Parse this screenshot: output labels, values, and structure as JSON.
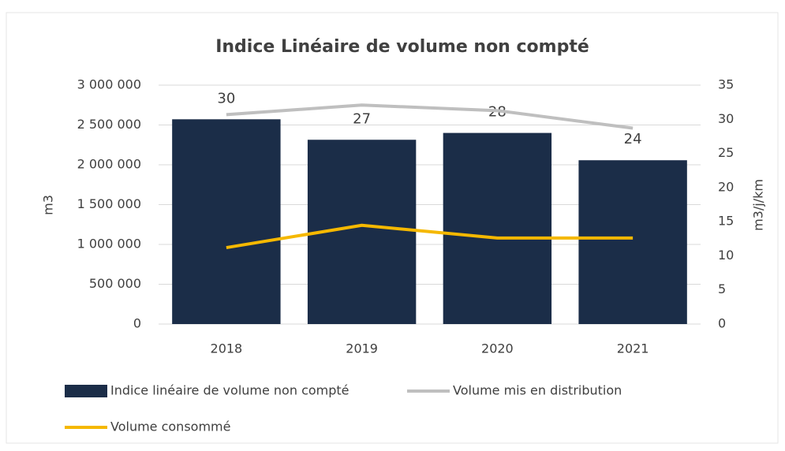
{
  "chart_data": {
    "type": "combo",
    "title": "Indice Linéaire de volume non compté",
    "categories": [
      "2018",
      "2019",
      "2020",
      "2021"
    ],
    "ylabel": "m3",
    "y2label": "m3/j/km",
    "ylim": [
      0,
      3000000
    ],
    "yticks": [
      0,
      {
        "value": 500000,
        "label": "500 000"
      },
      {
        "value": 1000000,
        "label": "1 000 000"
      },
      {
        "value": 1500000,
        "label": "1 500 000"
      },
      {
        "value": 2000000,
        "label": "2 000 000"
      },
      {
        "value": 2500000,
        "label": "2 500 000"
      },
      {
        "value": 3000000,
        "label": "3 000 000"
      }
    ],
    "y2lim": [
      0,
      35
    ],
    "y2ticks": [
      0,
      5,
      10,
      15,
      20,
      25,
      30,
      35
    ],
    "grid": true,
    "legend": "bottom",
    "series": [
      {
        "name": "Indice linéaire de volume non compté",
        "type": "bar",
        "axis": "y2",
        "color": "#1b2d48",
        "values": [
          30,
          27,
          28,
          24
        ]
      },
      {
        "name": "Volume mis en distribution",
        "type": "line",
        "axis": "y",
        "color": "#bfbfbf",
        "values": [
          2630000,
          2750000,
          2680000,
          2460000
        ]
      },
      {
        "name": "Volume consommé",
        "type": "line",
        "axis": "y",
        "color": "#f5b800",
        "values": [
          960000,
          1240000,
          1080000,
          1080000
        ]
      }
    ]
  }
}
